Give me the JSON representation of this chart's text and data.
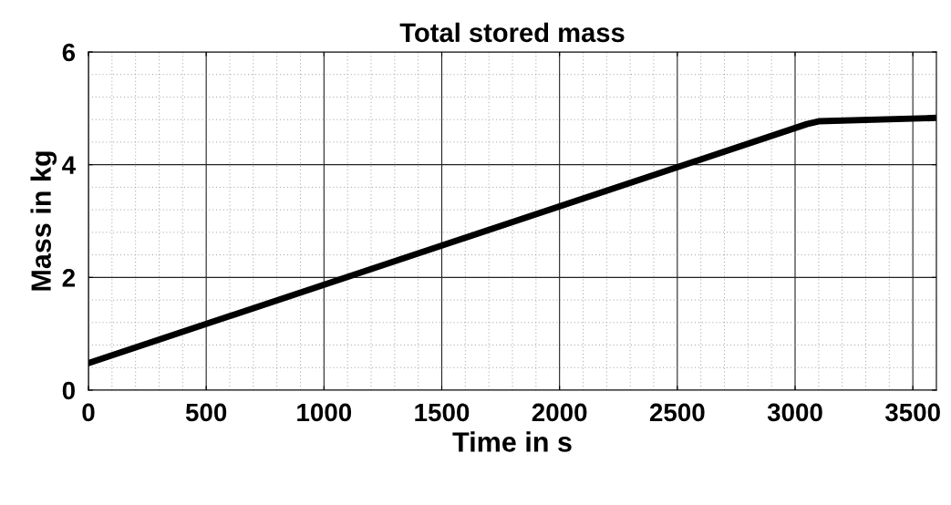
{
  "chart_data": {
    "type": "line",
    "title": "Total stored mass",
    "xlabel": "Time in s",
    "ylabel": "Mass in kg",
    "x": [
      0,
      3050,
      3100,
      3600
    ],
    "series": [
      {
        "color": "#000000",
        "values": [
          0.48,
          4.72,
          4.77,
          4.83
        ]
      }
    ],
    "xlim": [
      0,
      3600
    ],
    "xticks": [
      0,
      500,
      1000,
      1500,
      2000,
      2500,
      3000,
      3500
    ],
    "ylim": [
      0,
      6
    ],
    "yticks": [
      0,
      2,
      4,
      6
    ],
    "grid": true,
    "marker": "none",
    "line_style": "solid"
  }
}
